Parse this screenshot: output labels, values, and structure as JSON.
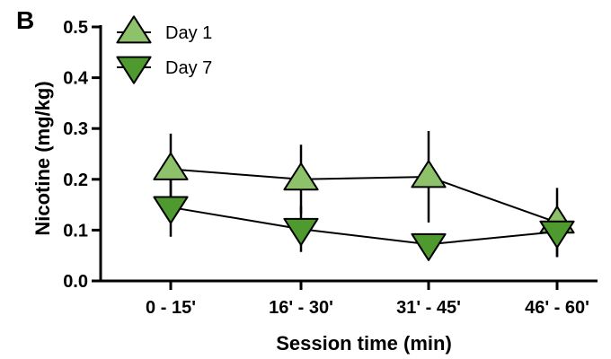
{
  "panel_label": "B",
  "chart_data": {
    "type": "line",
    "categories": [
      "0 - 15'",
      "16' - 30'",
      "31' - 45'",
      "46' - 60'"
    ],
    "xlabel": "Session time (min)",
    "ylabel": "Nicotine (mg/kg)",
    "ylim": [
      0,
      0.5
    ],
    "yticks": [
      "0.0",
      "0.1",
      "0.2",
      "0.3",
      "0.4",
      "0.5"
    ],
    "grid": false,
    "legend_position": "top-left",
    "series": [
      {
        "name": "Day 1",
        "marker": "triangle-up",
        "color": "#8dc26a",
        "values": [
          0.22,
          0.2,
          0.205,
          0.115
        ],
        "error": [
          0.07,
          0.068,
          0.09,
          0.068
        ]
      },
      {
        "name": "Day 7",
        "marker": "triangle-down",
        "color": "#4f9a2e",
        "values": [
          0.145,
          0.102,
          0.072,
          0.097
        ],
        "error": [
          0.058,
          0.045,
          0.0,
          0.05
        ]
      }
    ]
  }
}
